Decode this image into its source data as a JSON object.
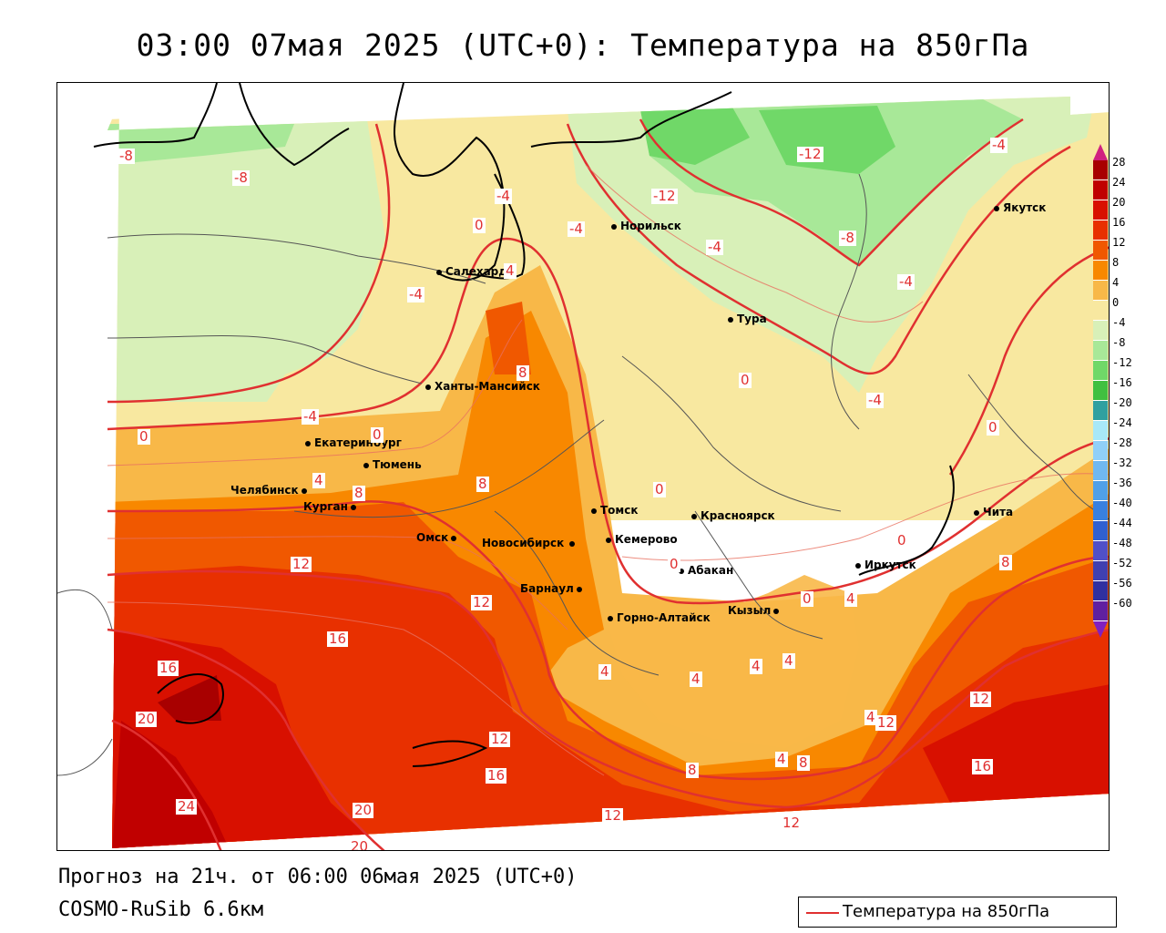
{
  "title": "03:00 07мая 2025 (UTC+0): Температура на 850гПа",
  "footer": {
    "forecast": "Прогноз на 21ч. от 06:00 06мая 2025 (UTC+0)",
    "model": "COSMO-RuSib 6.6км"
  },
  "legend": {
    "label": "Температура на 850гПа",
    "color": "#e03030"
  },
  "colorbar": {
    "ticks": [
      "28",
      "24",
      "20",
      "16",
      "12",
      "8",
      "4",
      "0",
      "-4",
      "-8",
      "-12",
      "-16",
      "-20",
      "-24",
      "-28",
      "-32",
      "-36",
      "-40",
      "-44",
      "-48",
      "-52",
      "-56",
      "-60"
    ],
    "colors": [
      "#a80000",
      "#c00000",
      "#d81000",
      "#e83000",
      "#f05800",
      "#f88800",
      "#f8b848",
      "#f8e8a0",
      "#d8f0b8",
      "#a8e898",
      "#70d868",
      "#40c040",
      "#30a0a0",
      "#a8e8f8",
      "#90d0f8",
      "#70b8f0",
      "#50a0e8",
      "#3880e0",
      "#3060d0",
      "#5050c8",
      "#4040b0",
      "#3030a0",
      "#6020a0"
    ],
    "top_color": "#d02080",
    "bottom_color": "#8020c0"
  },
  "cities": [
    {
      "name": "Норильск"
    },
    {
      "name": "Якутск"
    },
    {
      "name": "Салехард"
    },
    {
      "name": "Тура"
    },
    {
      "name": "Ханты-Мансийск"
    },
    {
      "name": "Екатеринбург"
    },
    {
      "name": "Тюмень"
    },
    {
      "name": "Челябинск"
    },
    {
      "name": "Курган"
    },
    {
      "name": "Омск"
    },
    {
      "name": "Новосибирск"
    },
    {
      "name": "Томск"
    },
    {
      "name": "Кемерово"
    },
    {
      "name": "Красноярск"
    },
    {
      "name": "Абакан"
    },
    {
      "name": "Барнаул"
    },
    {
      "name": "Горно-Алтайск"
    },
    {
      "name": "Кызыл"
    },
    {
      "name": "Иркутск"
    },
    {
      "name": "Чита"
    }
  ],
  "contour_labels": [
    "-8",
    "-8",
    "-4",
    "-12",
    "-12",
    "-4",
    "-8",
    "-4",
    "-4",
    "-4",
    "0",
    "4",
    "-4",
    "8",
    "0",
    "-4",
    "0",
    "4",
    "0",
    "8",
    "0",
    "0",
    "0",
    "8",
    "12",
    "12",
    "16",
    "16",
    "20",
    "24",
    "20",
    "20",
    "12",
    "16",
    "4",
    "4",
    "4",
    "4",
    "4",
    "12",
    "8",
    "4",
    "8",
    "12",
    "12",
    "12",
    "16",
    "0",
    "4",
    "8",
    "0",
    "-4"
  ]
}
